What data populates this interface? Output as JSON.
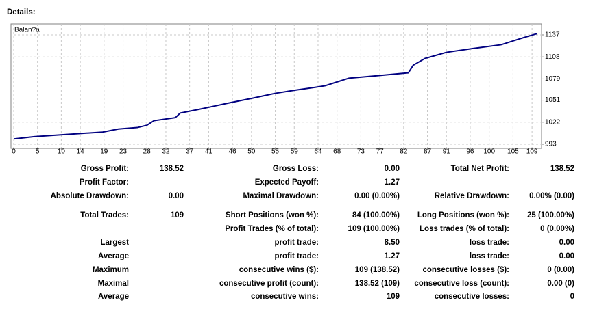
{
  "header": {
    "title": "Details:"
  },
  "chart_data": {
    "type": "line",
    "legend": "Balan?ã",
    "x": [
      0,
      4.3,
      11.5,
      18.7,
      22,
      26,
      28,
      29.5,
      34,
      35,
      39,
      42,
      45,
      50.5,
      55,
      59,
      63.5,
      65.5,
      68,
      70.5,
      76,
      83,
      84,
      86.5,
      91,
      96.5,
      102.5,
      106.5,
      110
    ],
    "series": [
      {
        "name": "Balan?ã",
        "color": "#000080",
        "values": [
          1000,
          1003,
          1006,
          1009,
          1013,
          1015,
          1018,
          1024,
          1028,
          1034,
          1039,
          1043,
          1047,
          1054,
          1060,
          1064,
          1068,
          1070,
          1075,
          1080,
          1083,
          1087,
          1097,
          1106,
          1114,
          1119,
          1124,
          1132,
          1138.52
        ]
      }
    ],
    "xlim": [
      0,
      111
    ],
    "xticks": [
      0,
      5,
      10,
      14,
      19,
      23,
      28,
      32,
      37,
      41,
      46,
      50,
      55,
      59,
      64,
      68,
      73,
      77,
      82,
      87,
      91,
      96,
      100,
      105,
      109
    ],
    "ylim": [
      987.6,
      1151.4
    ],
    "yticks": [
      993,
      1022,
      1051,
      1079,
      1108,
      1137
    ],
    "grid": true
  },
  "table": {
    "rows": [
      [
        "Gross Profit:",
        "138.52",
        "Gross Loss:",
        "0.00",
        "Total Net Profit:",
        "138.52"
      ],
      [
        "Profit Factor:",
        null,
        "Expected Payoff:",
        "1.27",
        null,
        null
      ],
      [
        "Absolute Drawdown:",
        "0.00",
        "Maximal Drawdown:",
        "0.00 (0.00%)",
        "Relative Drawdown:",
        "0.00% (0.00)"
      ],
      [
        "Total Trades:",
        "109",
        "Short Positions (won %):",
        "84 (100.00%)",
        "Long Positions (won %):",
        "25 (100.00%)"
      ],
      [
        null,
        null,
        "Profit Trades (% of total):",
        "109 (100.00%)",
        "Loss trades (% of total):",
        "0 (0.00%)"
      ],
      [
        "Largest",
        null,
        "profit trade:",
        "8.50",
        "loss trade:",
        "0.00"
      ],
      [
        "Average",
        null,
        "profit trade:",
        "1.27",
        "loss trade:",
        "0.00"
      ],
      [
        "Maximum",
        null,
        "consecutive wins ($):",
        "109 (138.52)",
        "consecutive losses ($):",
        "0 (0.00)"
      ],
      [
        "Maximal",
        null,
        "consecutive profit (count):",
        "138.52 (109)",
        "consecutive loss (count):",
        "0.00 (0)"
      ],
      [
        "Average",
        null,
        "consecutive wins:",
        "109",
        "consecutive losses:",
        "0"
      ]
    ]
  }
}
